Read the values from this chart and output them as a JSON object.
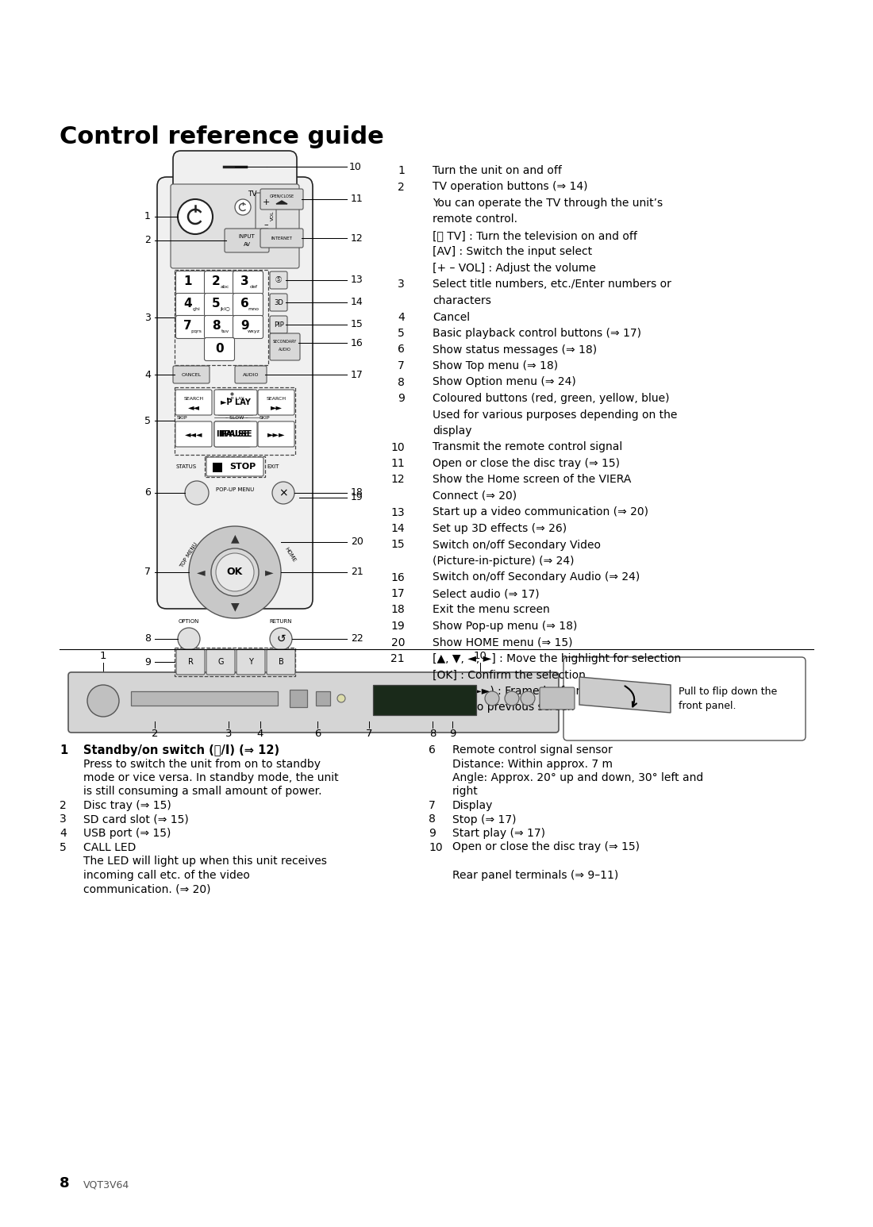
{
  "title": "Control reference guide",
  "bg_color": "#ffffff",
  "page_number": "8",
  "page_code": "VQT3V64",
  "right_col_items": [
    {
      "num": "1",
      "text": "Turn the unit on and off"
    },
    {
      "num": "2",
      "text": "TV operation buttons (⇒ 14)"
    },
    {
      "num": "",
      "text": "You can operate the TV through the unit’s"
    },
    {
      "num": "",
      "text": "remote control."
    },
    {
      "num": "",
      "text": "[⏻ TV] : Turn the television on and off"
    },
    {
      "num": "",
      "text": "[AV] : Switch the input select"
    },
    {
      "num": "",
      "text": "[+ – VOL] : Adjust the volume"
    },
    {
      "num": "3",
      "text": "Select title numbers, etc./Enter numbers or"
    },
    {
      "num": "",
      "text": "characters"
    },
    {
      "num": "4",
      "text": "Cancel"
    },
    {
      "num": "5",
      "text": "Basic playback control buttons (⇒ 17)"
    },
    {
      "num": "6",
      "text": "Show status messages (⇒ 18)"
    },
    {
      "num": "7",
      "text": "Show Top menu (⇒ 18)"
    },
    {
      "num": "8",
      "text": "Show Option menu (⇒ 24)"
    },
    {
      "num": "9",
      "text": "Coloured buttons (red, green, yellow, blue)"
    },
    {
      "num": "",
      "text": "Used for various purposes depending on the"
    },
    {
      "num": "",
      "text": "display"
    },
    {
      "num": "10",
      "text": "Transmit the remote control signal"
    },
    {
      "num": "11",
      "text": "Open or close the disc tray (⇒ 15)"
    },
    {
      "num": "12",
      "text": "Show the Home screen of the VIERA"
    },
    {
      "num": "",
      "text": "Connect (⇒ 20)"
    },
    {
      "num": "13",
      "text": "Start up a video communication (⇒ 20)"
    },
    {
      "num": "14",
      "text": "Set up 3D effects (⇒ 26)"
    },
    {
      "num": "15",
      "text": "Switch on/off Secondary Video"
    },
    {
      "num": "",
      "text": "(Picture-in-picture) (⇒ 24)"
    },
    {
      "num": "16",
      "text": "Switch on/off Secondary Audio (⇒ 24)"
    },
    {
      "num": "17",
      "text": "Select audio (⇒ 17)"
    },
    {
      "num": "18",
      "text": "Exit the menu screen"
    },
    {
      "num": "19",
      "text": "Show Pop-up menu (⇒ 18)"
    },
    {
      "num": "20",
      "text": "Show HOME menu (⇒ 15)"
    },
    {
      "num": "21",
      "text": "[▲, ▼, ◄, ►] : Move the highlight for selection"
    },
    {
      "num": "",
      "text": "[OK] : Confirm the selection"
    },
    {
      "num": "",
      "text": "(◄◄Ⅱ)(Ⅱ►►) : Frame-by-frame (⇒ 17)"
    },
    {
      "num": "22",
      "text": "Return to previous screen"
    }
  ],
  "bottom_left": [
    {
      "num": "1",
      "bold": true,
      "text": "Standby/on switch (⏻/I) (⇒ 12)"
    },
    {
      "num": "",
      "bold": false,
      "text": "Press to switch the unit from on to standby"
    },
    {
      "num": "",
      "bold": false,
      "text": "mode or vice versa. In standby mode, the unit"
    },
    {
      "num": "",
      "bold": false,
      "text": "is still consuming a small amount of power."
    },
    {
      "num": "2",
      "bold": false,
      "text": "Disc tray (⇒ 15)"
    },
    {
      "num": "3",
      "bold": false,
      "text": "SD card slot (⇒ 15)"
    },
    {
      "num": "4",
      "bold": false,
      "text": "USB port (⇒ 15)"
    },
    {
      "num": "5",
      "bold": false,
      "text": "CALL LED"
    },
    {
      "num": "",
      "bold": false,
      "text": "The LED will light up when this unit receives"
    },
    {
      "num": "",
      "bold": false,
      "text": "incoming call etc. of the video"
    },
    {
      "num": "",
      "bold": false,
      "text": "communication. (⇒ 20)"
    }
  ],
  "bottom_right": [
    {
      "num": "6",
      "bold": false,
      "text": "Remote control signal sensor"
    },
    {
      "num": "",
      "bold": false,
      "text": "Distance: Within approx. 7 m"
    },
    {
      "num": "",
      "bold": false,
      "text": "Angle: Approx. 20° up and down, 30° left and"
    },
    {
      "num": "",
      "bold": false,
      "text": "right"
    },
    {
      "num": "7",
      "bold": false,
      "text": "Display"
    },
    {
      "num": "8",
      "bold": false,
      "text": "Stop (⇒ 17)"
    },
    {
      "num": "9",
      "bold": false,
      "text": "Start play (⇒ 17)"
    },
    {
      "num": "10",
      "bold": false,
      "text": "Open or close the disc tray (⇒ 15)"
    },
    {
      "num": "",
      "bold": false,
      "text": ""
    },
    {
      "num": "",
      "bold": false,
      "text": "Rear panel terminals (⇒ 9–11)"
    }
  ]
}
